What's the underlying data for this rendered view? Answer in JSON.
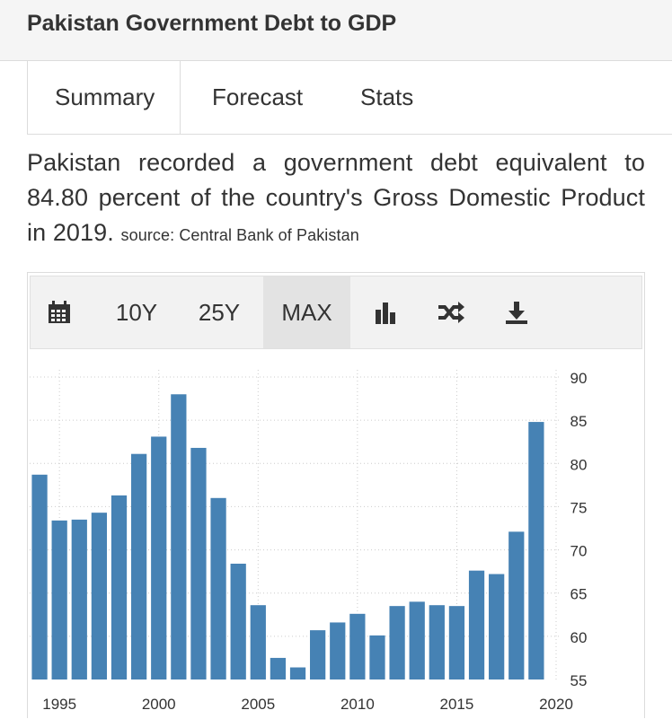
{
  "header": {
    "title": "Pakistan Government Debt to GDP"
  },
  "tabs": [
    {
      "label": "Summary"
    },
    {
      "label": "Forecast"
    },
    {
      "label": "Stats"
    }
  ],
  "description": {
    "text": "Pakistan recorded a government debt equivalent to 84.80 percent of the country's Gross Domestic Product in 2019.",
    "source": "source: Central Bank of Pakistan"
  },
  "toolbar": {
    "calendar_icon": "calendar-icon",
    "range_10y": "10Y",
    "range_25y": "25Y",
    "range_max": "MAX",
    "selected_range": "MAX",
    "chart_type_icon": "bar-chart-icon",
    "compare_icon": "shuffle-icon",
    "download_icon": "download-icon"
  },
  "colors": {
    "bar": "#4682b4",
    "grid": "#cccccc",
    "axis_text": "#333333"
  },
  "chart_data": {
    "type": "bar",
    "x": [
      1994,
      1995,
      1996,
      1997,
      1998,
      1999,
      2000,
      2001,
      2002,
      2003,
      2004,
      2005,
      2006,
      2007,
      2008,
      2009,
      2010,
      2011,
      2012,
      2013,
      2014,
      2015,
      2016,
      2017,
      2018,
      2019
    ],
    "values": [
      78.7,
      73.4,
      73.5,
      74.3,
      76.3,
      81.1,
      83.1,
      88.0,
      81.8,
      76.0,
      68.4,
      63.6,
      57.5,
      56.4,
      60.7,
      61.6,
      62.6,
      60.1,
      63.5,
      64.0,
      63.6,
      63.5,
      67.6,
      67.2,
      72.1,
      84.8
    ],
    "x_ticks": [
      1995,
      2000,
      2005,
      2010,
      2015,
      2020
    ],
    "y_ticks": [
      55,
      60,
      65,
      70,
      75,
      80,
      85,
      90
    ],
    "ylim": [
      55,
      90
    ],
    "y_axis_side": "right",
    "grid": true,
    "title": "",
    "xlabel": "",
    "ylabel": ""
  }
}
